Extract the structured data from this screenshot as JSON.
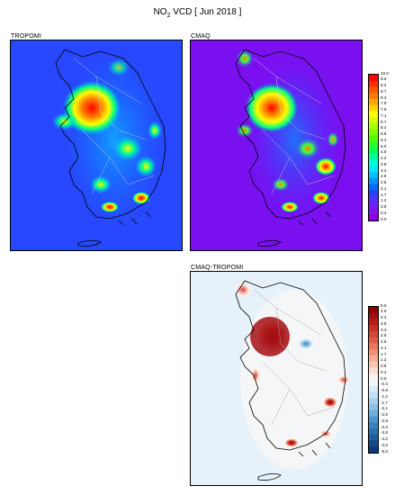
{
  "title": {
    "prefix": "NO",
    "sub": "2",
    "suffix": " VCD [ Jun 2018 ]"
  },
  "panels": {
    "tropomi": {
      "label": "TROPOMI"
    },
    "cmaq": {
      "label": "CMAQ"
    },
    "diff": {
      "label": "CMAQ-TROPOMI"
    }
  },
  "colorbar_main": {
    "ticks": [
      "10.0",
      "9.6",
      "9.2",
      "8.7",
      "8.3",
      "7.9",
      "7.5",
      "7.1",
      "6.7",
      "6.2",
      "5.8",
      "5.4",
      "5.0",
      "4.6",
      "4.2",
      "3.8",
      "3.3",
      "2.9",
      "2.5",
      "2.1",
      "1.7",
      "1.2",
      "0.8",
      "0.4",
      "0.0"
    ],
    "colors": [
      "#ff0000",
      "#ff2a00",
      "#ff5500",
      "#ff7f00",
      "#ffaa00",
      "#ffd400",
      "#ffff00",
      "#d4ff00",
      "#aaff00",
      "#7fff00",
      "#55ff00",
      "#2aff2a",
      "#00ff55",
      "#00ff9f",
      "#00ffd4",
      "#00e8ff",
      "#00bfff",
      "#0095ff",
      "#006bff",
      "#2a40ff",
      "#5530ff",
      "#7020ff",
      "#8010f0",
      "#8a00e0"
    ]
  },
  "colorbar_diff": {
    "ticks": [
      "5.0",
      "4.6",
      "4.2",
      "3.8",
      "3.3",
      "2.9",
      "2.5",
      "2.1",
      "1.7",
      "1.2",
      "0.8",
      "0.4",
      "0.0",
      "-0.4",
      "-0.8",
      "-1.2",
      "-1.7",
      "-2.1",
      "-2.5",
      "-2.9",
      "-3.3",
      "-3.8",
      "-4.2",
      "-4.6",
      "-5.0"
    ],
    "colors": [
      "#8b0000",
      "#a50f15",
      "#bb1a1a",
      "#cb2e25",
      "#d64537",
      "#e05c4a",
      "#e8765f",
      "#f09078",
      "#f5ab94",
      "#f9c6b3",
      "#fcdfd2",
      "#fff2ec",
      "#f0f7fc",
      "#d9ebf7",
      "#c2def2",
      "#a8cfe9",
      "#8cbfe0",
      "#6eaed7",
      "#5299cb",
      "#3a84be",
      "#2a6fae",
      "#1f5c9c",
      "#154a89",
      "#0d3a75"
    ]
  },
  "colors": {
    "background": "#2040ff",
    "cmaq_background": "#8000e8",
    "diff_background": "#eef6fb",
    "coast": "#000000",
    "province": "#d8d8d8"
  }
}
